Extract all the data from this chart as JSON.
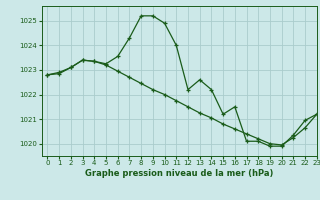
{
  "title": "Graphe pression niveau de la mer (hPa)",
  "bg_color": "#cce8e8",
  "grid_color": "#aacccc",
  "line_color": "#1a5c1a",
  "series1": {
    "x": [
      0,
      1,
      2,
      3,
      4,
      5,
      6,
      7,
      8,
      9,
      10,
      11,
      12,
      13,
      14,
      15,
      16,
      17,
      18,
      19,
      20,
      21,
      22,
      23
    ],
    "y": [
      1022.8,
      1022.9,
      1023.1,
      1023.4,
      1023.35,
      1023.25,
      1023.55,
      1024.3,
      1025.2,
      1025.2,
      1024.9,
      1024.0,
      1022.2,
      1022.6,
      1022.2,
      1021.2,
      1021.5,
      1020.1,
      1020.1,
      1019.9,
      1019.9,
      1020.35,
      1020.95,
      1021.2
    ]
  },
  "series2": {
    "x": [
      0,
      1,
      2,
      3,
      4,
      5,
      6,
      7,
      8,
      9,
      10,
      11,
      12,
      13,
      14,
      15,
      16,
      17,
      18,
      19,
      20,
      21,
      22,
      23
    ],
    "y": [
      1022.8,
      1022.85,
      1023.1,
      1023.4,
      1023.35,
      1023.2,
      1022.95,
      1022.7,
      1022.45,
      1022.2,
      1022.0,
      1021.75,
      1021.5,
      1021.25,
      1021.05,
      1020.8,
      1020.6,
      1020.4,
      1020.2,
      1020.0,
      1019.95,
      1020.25,
      1020.65,
      1021.2
    ]
  },
  "ylim": [
    1019.5,
    1025.6
  ],
  "xlim": [
    -0.5,
    23
  ],
  "yticks": [
    1020,
    1021,
    1022,
    1023,
    1024,
    1025
  ],
  "xticks": [
    0,
    1,
    2,
    3,
    4,
    5,
    6,
    7,
    8,
    9,
    10,
    11,
    12,
    13,
    14,
    15,
    16,
    17,
    18,
    19,
    20,
    21,
    22,
    23
  ],
  "xlabel_fontsize": 6.0,
  "tick_fontsize": 5.0
}
